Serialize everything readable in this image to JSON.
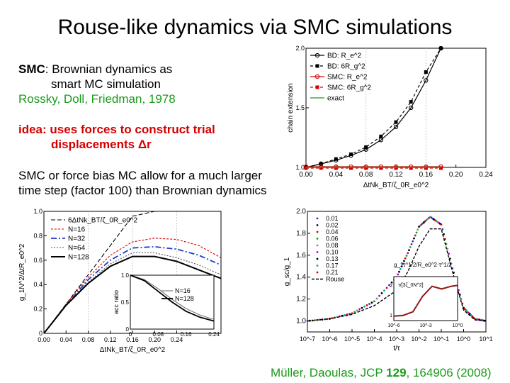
{
  "slide": {
    "title": "Rouse-like dynamics via SMC simulations",
    "smc_label": "SMC",
    "smc_rest": ": Brownian dynamics as",
    "smc_line2": "smart MC simulation",
    "ref1": "Rossky, Doll, Friedman, 1978",
    "idea_line1": "idea: uses forces to construct trial",
    "idea_line2": "displacements Δr",
    "claim_line1": "SMC or force bias MC allow for a much larger",
    "claim_line2": "time step (factor 100) than Brownian dynamics",
    "cite_pre": "Müller, Daoulas, JCP ",
    "cite_vol": "129",
    "cite_post": ", 164906 (2008)"
  },
  "colors": {
    "red": "#d40000",
    "green": "#1a9a1a",
    "blue": "#1a3ccc"
  },
  "chart_data": [
    {
      "type": "line",
      "ylabel": "chain extension",
      "xlabel": "ΔtNk_BT/ζ_0R_e0^2",
      "xlim": [
        0,
        0.24
      ],
      "ylim": [
        1.0,
        2.0
      ],
      "x_ticks": [
        "0.00",
        "0.04",
        "0.08",
        "0.12",
        "0.16",
        "0.20",
        "0.24"
      ],
      "y_ticks": [
        "1.0",
        "1.5",
        "2.0"
      ],
      "legend": [
        "BD: R_e^2",
        "BD: 6R_g^2",
        "SMC: R_e^2",
        "SMC: 6R_g^2",
        "exact"
      ],
      "legend_position": "top-left",
      "x": [
        0.0,
        0.02,
        0.04,
        0.06,
        0.08,
        0.1,
        0.12,
        0.14,
        0.16,
        0.18
      ],
      "series": [
        {
          "name": "BD: R_e^2",
          "values": [
            1.0,
            1.03,
            1.06,
            1.1,
            1.15,
            1.23,
            1.34,
            1.5,
            1.73,
            2.0
          ]
        },
        {
          "name": "BD: 6R_g^2",
          "values": [
            1.0,
            1.03,
            1.07,
            1.11,
            1.17,
            1.26,
            1.38,
            1.55,
            1.8,
            2.0
          ]
        },
        {
          "name": "SMC: R_e^2",
          "values": [
            1.0,
            1.0,
            1.0,
            1.0,
            1.0,
            1.0,
            1.0,
            1.0,
            1.0,
            1.0
          ]
        },
        {
          "name": "SMC: 6R_g^2",
          "values": [
            1.0,
            1.0,
            1.0,
            1.0,
            1.0,
            1.0,
            1.0,
            1.0,
            1.0,
            1.0
          ]
        },
        {
          "name": "exact",
          "values": [
            1.0,
            1.0,
            1.0,
            1.0,
            1.0,
            1.0,
            1.0,
            1.0,
            1.0,
            1.0
          ]
        }
      ]
    },
    {
      "type": "line",
      "ylabel": "g_1N^2/ΔtR_e0^2",
      "xlabel": "ΔtNk_BT/ζ_0R_e0^2",
      "xlim": [
        0,
        0.32
      ],
      "ylim": [
        0,
        1.0
      ],
      "x_ticks": [
        "0.00",
        "0.04",
        "0.08",
        "0.12",
        "0.16",
        "0.20",
        "0.24"
      ],
      "y_ticks": [
        "0",
        "0.2",
        "0.4",
        "0.6",
        "0.8",
        "1.0"
      ],
      "legend": [
        "6ΔtNk_BT/ζ_0R_e0^2",
        "N=16",
        "N=32",
        "N=64",
        "N=128"
      ],
      "legend_position": "top-left",
      "x": [
        0.0,
        0.04,
        0.08,
        0.12,
        0.16,
        0.2,
        0.24,
        0.28,
        0.32
      ],
      "series": [
        {
          "name": "6ΔtNk_BT/ζ_0R_e0^2",
          "values": [
            0.0,
            0.24,
            0.48,
            0.72,
            0.96,
            1.0,
            1.0,
            1.0,
            1.0
          ]
        },
        {
          "name": "N=16",
          "values": [
            0.0,
            0.24,
            0.46,
            0.64,
            0.75,
            0.78,
            0.77,
            0.72,
            0.62
          ]
        },
        {
          "name": "N=32",
          "values": [
            0.0,
            0.23,
            0.44,
            0.6,
            0.7,
            0.71,
            0.69,
            0.64,
            0.56
          ]
        },
        {
          "name": "N=64",
          "values": [
            0.0,
            0.23,
            0.42,
            0.57,
            0.66,
            0.66,
            0.62,
            0.56,
            0.48
          ]
        },
        {
          "name": "N=128",
          "values": [
            0.0,
            0.23,
            0.41,
            0.55,
            0.63,
            0.63,
            0.59,
            0.52,
            0.45
          ]
        }
      ],
      "inset": {
        "ylabel": "acc ratio",
        "x_ticks": [
          "0",
          "0.08",
          "0.16",
          "0.24"
        ],
        "y_ticks": [
          "0",
          "0.5",
          "1.0"
        ],
        "legend": [
          "N=16",
          "N=128"
        ],
        "x": [
          0.0,
          0.04,
          0.08,
          0.12,
          0.16,
          0.2,
          0.24
        ],
        "series": [
          {
            "name": "N=16",
            "values": [
              1.0,
              0.92,
              0.75,
              0.55,
              0.38,
              0.26,
              0.18
            ]
          },
          {
            "name": "N=128",
            "values": [
              1.0,
              0.9,
              0.7,
              0.5,
              0.33,
              0.22,
              0.15
            ]
          }
        ]
      }
    },
    {
      "type": "scatter",
      "ylabel": "g_sc/g_1",
      "xlabel": "t/τ",
      "xscale": "log",
      "xlim": [
        "1e-7",
        "1e1"
      ],
      "ylim": [
        0.9,
        2.0
      ],
      "x_ticks": [
        "10^-7",
        "10^-6",
        "10^-5",
        "10^-4",
        "10^-3",
        "10^-2",
        "10^-1",
        "10^0",
        "10^1"
      ],
      "y_ticks": [
        "1.0",
        "1.2",
        "1.4",
        "1.6",
        "1.8",
        "2.0"
      ],
      "legend": [
        "0.01",
        "0.02",
        "0.04",
        "0.06",
        "0.08",
        "0.10",
        "0.13",
        "0.17",
        "0.21",
        "Rouse"
      ],
      "legend_position": "top-left",
      "annotations": [
        "g_1τ^1/2/R_e0^2·τ^1/2",
        "τ/[3ζ_0N^2]"
      ],
      "inset": {
        "x_ticks": [
          "10^-6",
          "10^-3",
          "10^0"
        ],
        "y_ticks": [
          "1",
          "2"
        ]
      },
      "log10_t": [
        -7,
        -6,
        -5,
        -4,
        -3,
        -2.5,
        -2,
        -1.5,
        -1,
        -0.5,
        0,
        0.5,
        1
      ],
      "series": [
        {
          "name": "Rouse",
          "values": [
            1.0,
            1.02,
            1.06,
            1.14,
            1.28,
            1.45,
            1.68,
            1.84,
            1.84,
            1.45,
            1.1,
            1.01,
            1.0
          ]
        },
        {
          "name": "0.21",
          "values": [
            1.0,
            1.02,
            1.07,
            1.18,
            1.4,
            1.62,
            1.86,
            1.95,
            1.88,
            1.48,
            1.12,
            1.02,
            1.0
          ]
        }
      ]
    }
  ]
}
